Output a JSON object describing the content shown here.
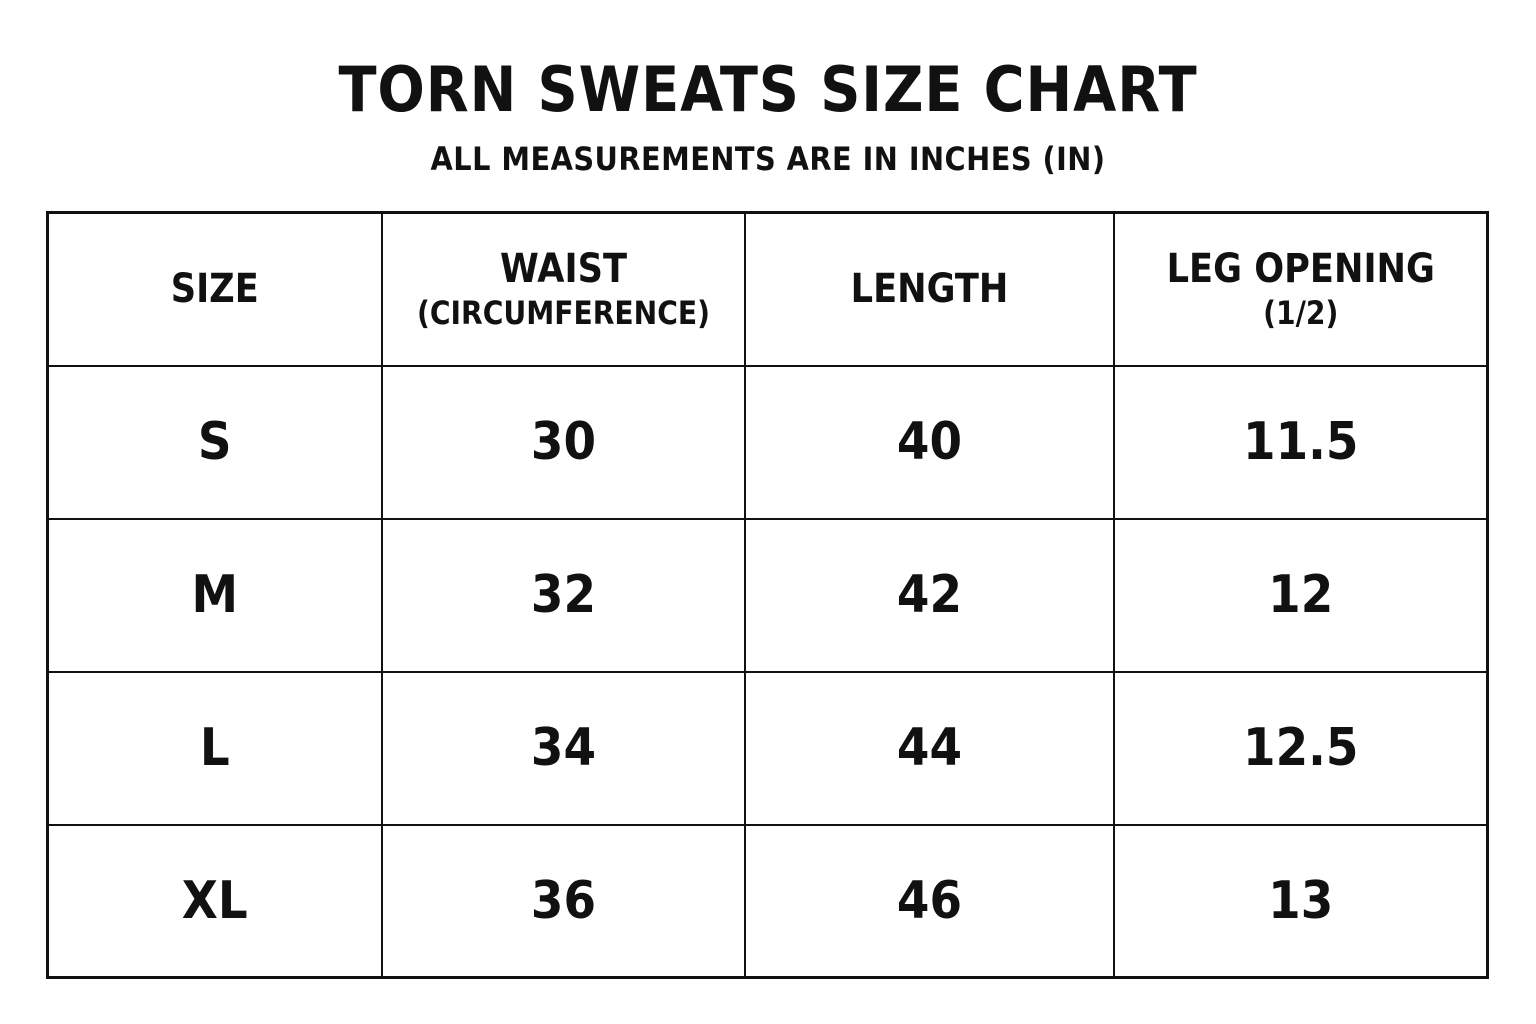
{
  "title": "TORN SWEATS SIZE CHART",
  "subtitle": "ALL MEASUREMENTS ARE IN INCHES (IN)",
  "table": {
    "headers": [
      {
        "main": "SIZE",
        "sub": ""
      },
      {
        "main": "WAIST",
        "sub": "(CIRCUMFERENCE)"
      },
      {
        "main": "LENGTH",
        "sub": ""
      },
      {
        "main": "LEG OPENING",
        "sub": "(1/2)"
      }
    ],
    "rows": [
      [
        "S",
        "30",
        "40",
        "11.5"
      ],
      [
        "M",
        "32",
        "42",
        "12"
      ],
      [
        "L",
        "34",
        "44",
        "12.5"
      ],
      [
        "XL",
        "36",
        "46",
        "13"
      ]
    ]
  }
}
